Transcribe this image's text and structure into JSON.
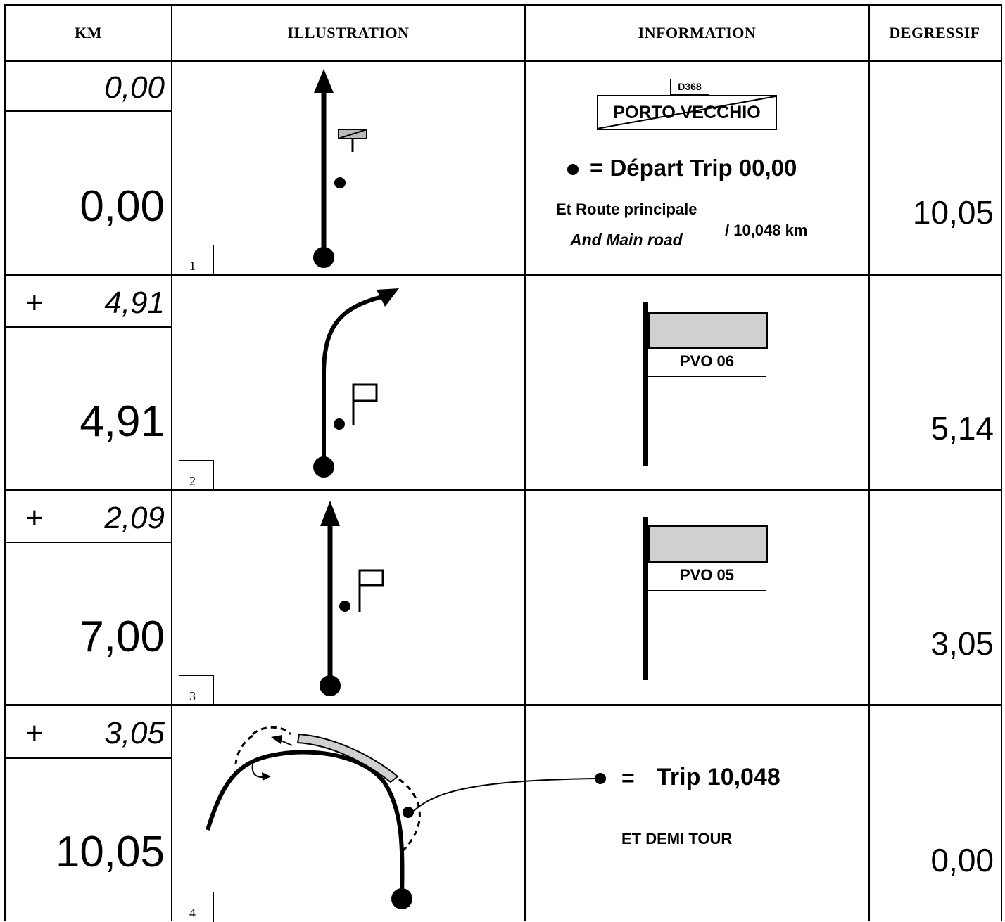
{
  "headers": {
    "km": "KM",
    "illustration": "ILLUSTRATION",
    "information": "INFORMATION",
    "degressif": "DEGRESSIF"
  },
  "rows": [
    {
      "number": "1",
      "partial": "0,00",
      "plus": "",
      "cumul": "0,00",
      "degressif": "10,05",
      "info": {
        "road_number": "D368",
        "place_sign": "PORTO VECCHIO",
        "depart": "= Départ Trip 00,00",
        "line1": "Et Route principale",
        "line2": "And Main road",
        "distance": "/ 10,048 km"
      }
    },
    {
      "number": "2",
      "partial": "4,91",
      "plus": "+",
      "cumul": "4,91",
      "degressif": "5,14",
      "info": {
        "sign": "PVO 06"
      }
    },
    {
      "number": "3",
      "partial": "2,09",
      "plus": "+",
      "cumul": "7,00",
      "degressif": "3,05",
      "info": {
        "sign": "PVO 05"
      }
    },
    {
      "number": "4",
      "partial": "3,05",
      "plus": "+",
      "cumul": "10,05",
      "degressif": "0,00",
      "info": {
        "trip_equal": "=",
        "trip": "Trip 10,048",
        "instruction": "ET DEMI TOUR"
      }
    }
  ]
}
